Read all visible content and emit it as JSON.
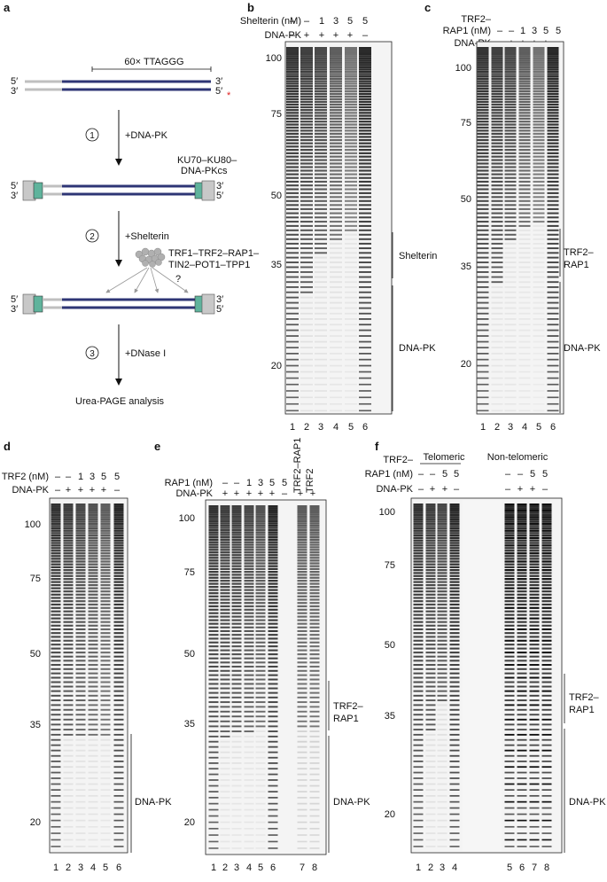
{
  "panels": {
    "a": {
      "letter": "a",
      "repeat_label": "60× TTAGGG",
      "end_5p": "5′",
      "end_3p": "3′",
      "radiolabel": "*",
      "steps": [
        {
          "num": "1",
          "label": "+DNA-PK"
        },
        {
          "num": "2",
          "label": "+Shelterin"
        },
        {
          "num": "3",
          "label": "+DNase I"
        }
      ],
      "complex_line1": "KU70–KU80–",
      "complex_line2": "DNA-PKcs",
      "shelterin_line1": "TRF1–TRF2–RAP1–",
      "shelterin_line2": "TIN2–POT1–TPP1",
      "question": "?",
      "final": "Urea-PAGE analysis",
      "colors": {
        "duplex": "#2e3575",
        "flank": "#bfbfbf",
        "ku": "#5fb39c",
        "pkcs": "#c8c8c8",
        "star": "#e02020"
      }
    },
    "b": {
      "letter": "b",
      "row1_label": "Shelterin (nM)",
      "row1": [
        "–",
        "–",
        "1",
        "3",
        "5",
        "5"
      ],
      "row2_label": "DNA-PK",
      "row2": [
        "–",
        "+",
        "+",
        "+",
        "+",
        "–"
      ],
      "markers": [
        "100",
        "75",
        "50",
        "35",
        "20"
      ],
      "lanes": [
        "1",
        "2",
        "3",
        "4",
        "5",
        "6"
      ],
      "bracket1": "Shelterin",
      "bracket2": "DNA-PK"
    },
    "c": {
      "letter": "c",
      "row1_label_a": "TRF2–",
      "row1_label_b": "RAP1 (nM)",
      "row1": [
        "–",
        "–",
        "1",
        "3",
        "5",
        "5"
      ],
      "row2_label": "DNA-PK",
      "row2": [
        "–",
        "+",
        "+",
        "+",
        "+",
        "–"
      ],
      "markers": [
        "100",
        "75",
        "50",
        "35",
        "20"
      ],
      "lanes": [
        "1",
        "2",
        "3",
        "4",
        "5",
        "6"
      ],
      "bracket1_a": "TRF2–",
      "bracket1_b": "RAP1",
      "bracket2": "DNA-PK"
    },
    "d": {
      "letter": "d",
      "row1_label": "TRF2 (nM)",
      "row1": [
        "–",
        "–",
        "1",
        "3",
        "5",
        "5"
      ],
      "row2_label": "DNA-PK",
      "row2": [
        "–",
        "+",
        "+",
        "+",
        "+",
        "–"
      ],
      "markers": [
        "100",
        "75",
        "50",
        "35",
        "20"
      ],
      "lanes": [
        "1",
        "2",
        "3",
        "4",
        "5",
        "6"
      ],
      "bracket2": "DNA-PK"
    },
    "e": {
      "letter": "e",
      "row1_label": "RAP1 (nM)",
      "row1": [
        "–",
        "–",
        "1",
        "3",
        "5",
        "5"
      ],
      "row2_label": "DNA-PK",
      "row2": [
        "+",
        "+",
        "+",
        "+",
        "+",
        "–",
        "+",
        "+"
      ],
      "rot1": "TRF2–RAP1",
      "rot2": "TRF2",
      "markers": [
        "100",
        "75",
        "50",
        "35",
        "20"
      ],
      "lanes": [
        "1",
        "2",
        "3",
        "4",
        "5",
        "6",
        "7",
        "8"
      ],
      "bracket1_a": "TRF2–",
      "bracket1_b": "RAP1",
      "bracket2": "DNA-PK"
    },
    "f": {
      "letter": "f",
      "group1": "Telomeric",
      "group2": "Non-telomeric",
      "row1_label_a": "TRF2–",
      "row1_label_b": "RAP1 (nM)",
      "row1": [
        "–",
        "–",
        "5",
        "5",
        "–",
        "–",
        "5",
        "5"
      ],
      "row2_label": "DNA-PK",
      "row2": [
        "–",
        "+",
        "+",
        "–",
        "–",
        "+",
        "+",
        "–"
      ],
      "markers": [
        "100",
        "75",
        "50",
        "35",
        "20"
      ],
      "lanes": [
        "1",
        "2",
        "3",
        "4",
        "5",
        "6",
        "7",
        "8"
      ],
      "bracket1_a": "TRF2–",
      "bracket1_b": "RAP1",
      "bracket2": "DNA-PK"
    }
  }
}
